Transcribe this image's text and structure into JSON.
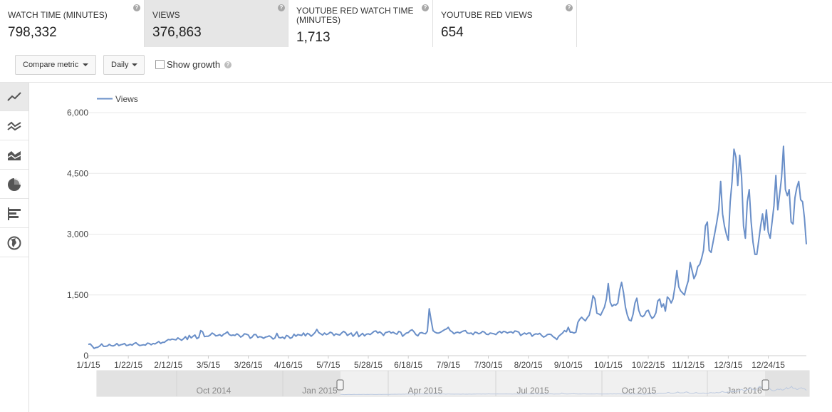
{
  "metrics": [
    {
      "label": "WATCH TIME (MINUTES)",
      "value": "798,332"
    },
    {
      "label": "VIEWS",
      "value": "376,863"
    },
    {
      "label": "YOUTUBE RED WATCH TIME (MINUTES)",
      "value": "1,713"
    },
    {
      "label": "YOUTUBE RED VIEWS",
      "value": "654"
    }
  ],
  "selected_metric": "VIEWS",
  "help_glyph": "?",
  "toolbar": {
    "compare_label": "Compare metric",
    "interval_label": "Daily",
    "show_growth_label": "Show growth",
    "show_growth_checked": false
  },
  "chart_types": [
    "line-chart-icon",
    "multiline-chart-icon",
    "stacked-area-icon",
    "pie-chart-icon",
    "bar-chart-icon",
    "globe-map-icon"
  ],
  "colors": {
    "series": "#6a8fc8",
    "accent_selected": "#e6e6e6"
  },
  "chart_data": {
    "type": "line",
    "legend_position": "top-left",
    "grid": true,
    "series": [
      {
        "name": "Views",
        "values": [
          280,
          290,
          240,
          180,
          200,
          210,
          240,
          290,
          230,
          230,
          240,
          280,
          250,
          240,
          260,
          300,
          250,
          270,
          280,
          300,
          250,
          260,
          280,
          260,
          300,
          320,
          280,
          250,
          260,
          270,
          260,
          310,
          300,
          270,
          300,
          290,
          320,
          350,
          300,
          330,
          330,
          370,
          400,
          390,
          410,
          400,
          390,
          440,
          410,
          380,
          420,
          470,
          400,
          500,
          440,
          480,
          510,
          420,
          450,
          620,
          590,
          470,
          480,
          480,
          510,
          560,
          530,
          490,
          500,
          520,
          480,
          530,
          550,
          590,
          520,
          500,
          510,
          500,
          540,
          510,
          460,
          490,
          540,
          530,
          510,
          430,
          460,
          520,
          520,
          450,
          470,
          460,
          430,
          460,
          470,
          490,
          460,
          410,
          440,
          550,
          450,
          440,
          460,
          420,
          500,
          480,
          430,
          450,
          530,
          480,
          520,
          510,
          500,
          560,
          490,
          550,
          530,
          480,
          520,
          570,
          650,
          570,
          540,
          510,
          560,
          520,
          540,
          580,
          560,
          500,
          540,
          520,
          510,
          560,
          600,
          570,
          500,
          530,
          560,
          480,
          530,
          590,
          470,
          510,
          550,
          490,
          530,
          540,
          520,
          560,
          600,
          610,
          560,
          590,
          550,
          500,
          570,
          580,
          600,
          560,
          580,
          550,
          530,
          600,
          580,
          480,
          520,
          560,
          570,
          620,
          640,
          590,
          520,
          490,
          560,
          570,
          550,
          540,
          600,
          1160,
          870,
          620,
          580,
          560,
          560,
          580,
          610,
          640,
          660,
          700,
          620,
          590,
          540,
          570,
          580,
          560,
          590,
          610,
          620,
          560,
          550,
          560,
          520,
          580,
          570,
          540,
          560,
          600,
          580,
          530,
          520,
          560,
          550,
          540,
          520,
          570,
          600,
          560,
          600,
          590,
          560,
          580,
          590,
          560,
          610,
          600,
          580,
          500,
          530,
          560,
          530,
          560,
          560,
          480,
          520,
          540,
          530,
          550,
          500,
          460,
          480,
          520,
          530,
          520,
          470,
          440,
          400,
          480,
          520,
          560,
          620,
          590,
          700,
          580,
          580,
          560,
          580,
          820,
          900,
          950,
          900,
          860,
          940,
          1000,
          1200,
          1480,
          1400,
          1050,
          1030,
          1000,
          1100,
          1200,
          1400,
          1780,
          1320,
          1220,
          1260,
          1250,
          1300,
          1620,
          1810,
          1560,
          1200,
          1000,
          880,
          860,
          1020,
          1300,
          1420,
          1120,
          990,
          960,
          1000,
          1100,
          1120,
          1000,
          920,
          960,
          1060,
          1350,
          1400,
          1200,
          1280,
          1100,
          1450,
          1400,
          1300,
          1400,
          1700,
          2100,
          1700,
          1600,
          1550,
          1500,
          1700,
          1850,
          2300,
          2100,
          1900,
          2000,
          2200,
          2250,
          2400,
          2600,
          3200,
          3300,
          2600,
          2550,
          2800,
          3050,
          3300,
          3600,
          4300,
          3500,
          3200,
          3000,
          2850,
          3800,
          4300,
          5100,
          4900,
          4200,
          4950,
          4400,
          3200,
          2900,
          3800,
          4100,
          3300,
          2800,
          2500,
          2500,
          2850,
          3200,
          3500,
          3100,
          3600,
          3050,
          2900,
          3300,
          3700,
          4450,
          3600,
          4000,
          4400,
          5170,
          4100,
          3950,
          4100,
          3300,
          3250,
          3900,
          4150,
          4300,
          3850,
          3800,
          3400,
          2750
        ]
      }
    ],
    "x_tick_labels": [
      "1/1/15",
      "1/22/15",
      "2/12/15",
      "3/5/15",
      "3/26/15",
      "4/16/15",
      "5/7/15",
      "5/28/15",
      "6/18/15",
      "7/9/15",
      "7/30/15",
      "8/20/15",
      "9/10/15",
      "10/1/15",
      "10/22/15",
      "11/12/15",
      "12/3/15",
      "12/24/15"
    ],
    "y_tick_labels": [
      "0",
      "1,500",
      "3,000",
      "4,500",
      "6,000"
    ],
    "ylim": [
      0,
      6000
    ],
    "navigator_labels": [
      "Oct 2014",
      "Jan 2015",
      "Apr 2015",
      "Jul 2015",
      "Oct 2015",
      "Jan 2016"
    ]
  }
}
